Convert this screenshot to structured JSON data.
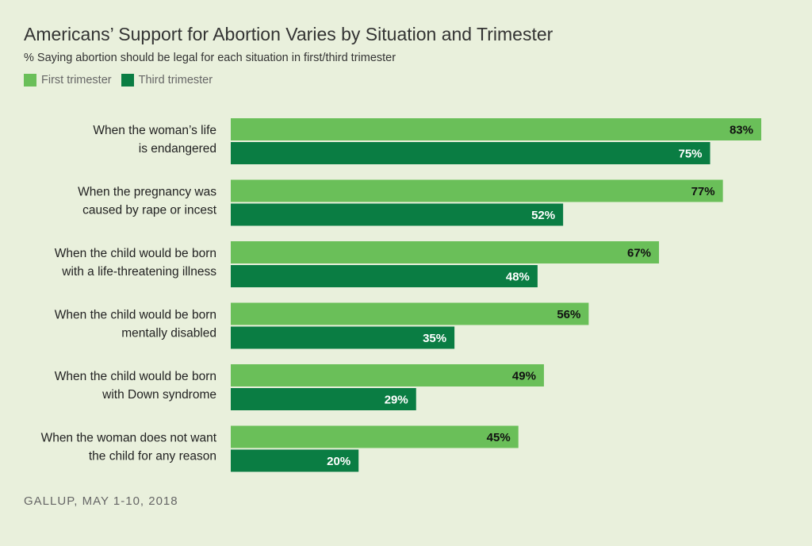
{
  "chart_data": {
    "type": "bar",
    "orientation": "horizontal",
    "title": "Americans’ Support for Abortion Varies by Situation and Trimester",
    "subtitle": "% Saying abortion should be legal for each situation in first/third trimester",
    "categories": [
      [
        "When the woman’s life",
        "is endangered"
      ],
      [
        "When the pregnancy was",
        "caused by rape or incest"
      ],
      [
        "When the child would be born",
        "with a life-threatening illness"
      ],
      [
        "When the child would be born",
        "mentally disabled"
      ],
      [
        "When the child would be born",
        "with Down syndrome"
      ],
      [
        "When the woman does not want",
        "the child for any reason"
      ]
    ],
    "series": [
      {
        "name": "First trimester",
        "color": "#6abf59",
        "values": [
          83,
          77,
          67,
          56,
          49,
          45
        ],
        "labels": [
          "83%",
          "77%",
          "67%",
          "56%",
          "49%",
          "45%"
        ]
      },
      {
        "name": "Third trimester",
        "color": "#0a7d43",
        "values": [
          75,
          52,
          48,
          35,
          29,
          20
        ],
        "labels": [
          "75%",
          "52%",
          "48%",
          "35%",
          "29%",
          "20%"
        ]
      }
    ],
    "xlim": [
      0,
      100
    ],
    "legend_position": "top-left",
    "grid": false,
    "source": "GALLUP, MAY 1-10, 2018"
  }
}
